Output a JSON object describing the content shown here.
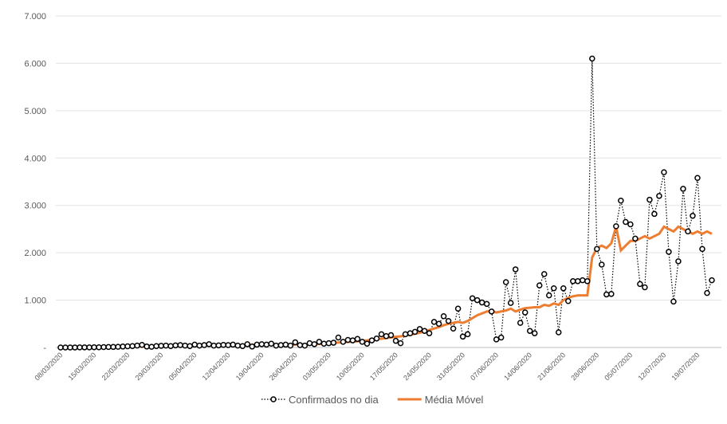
{
  "chart_data": {
    "type": "line",
    "categories": [
      "08/03/2020",
      null,
      null,
      null,
      null,
      null,
      null,
      "15/03/2020",
      null,
      null,
      null,
      null,
      null,
      null,
      "22/03/2020",
      null,
      null,
      null,
      null,
      null,
      null,
      "29/03/2020",
      null,
      null,
      null,
      null,
      null,
      null,
      "05/04/2020",
      null,
      null,
      null,
      null,
      null,
      null,
      "12/04/2020",
      null,
      null,
      null,
      null,
      null,
      null,
      "19/04/2020",
      null,
      null,
      null,
      null,
      null,
      null,
      "26/04/2020",
      null,
      null,
      null,
      null,
      null,
      null,
      "03/05/2020",
      null,
      null,
      null,
      null,
      null,
      null,
      "10/05/2020",
      null,
      null,
      null,
      null,
      null,
      null,
      "17/05/2020",
      null,
      null,
      null,
      null,
      null,
      null,
      "24/05/2020",
      null,
      null,
      null,
      null,
      null,
      null,
      "31/05/2020",
      null,
      null,
      null,
      null,
      null,
      null,
      "07/06/2020",
      null,
      null,
      null,
      null,
      null,
      null,
      "14/06/2020",
      null,
      null,
      null,
      null,
      null,
      null,
      "21/06/2020",
      null,
      null,
      null,
      null,
      null,
      null,
      "28/06/2020",
      null,
      null,
      null,
      null,
      null,
      null,
      "05/07/2020",
      null,
      null,
      null,
      null,
      null,
      null,
      "12/07/2020",
      null,
      null,
      null,
      null,
      null,
      null,
      "19/07/2020",
      null,
      null,
      null
    ],
    "series": [
      {
        "name": "Confirmados no dia",
        "color": "#000000",
        "dash": "dotted",
        "marker": "circle",
        "values": [
          0,
          0,
          0,
          1,
          2,
          3,
          2,
          5,
          4,
          8,
          10,
          12,
          15,
          20,
          25,
          30,
          40,
          55,
          20,
          15,
          30,
          35,
          40,
          30,
          45,
          50,
          40,
          30,
          60,
          40,
          50,
          70,
          40,
          45,
          55,
          50,
          60,
          40,
          30,
          70,
          20,
          60,
          70,
          60,
          80,
          40,
          50,
          60,
          40,
          110,
          50,
          40,
          90,
          70,
          120,
          80,
          90,
          100,
          210,
          120,
          160,
          150,
          180,
          120,
          80,
          150,
          190,
          280,
          240,
          260,
          140,
          90,
          280,
          300,
          330,
          390,
          350,
          300,
          540,
          500,
          660,
          560,
          400,
          820,
          230,
          280,
          1040,
          1000,
          950,
          920,
          760,
          170,
          210,
          1380,
          940,
          1650,
          520,
          740,
          350,
          300,
          1310,
          1550,
          1100,
          1250,
          320,
          1250,
          980,
          1400,
          1400,
          1420,
          1400,
          6100,
          2080,
          1750,
          1120,
          1130,
          2560,
          3100,
          2650,
          2600,
          2300,
          1340,
          1270,
          3120,
          2820,
          3200,
          3700,
          2020,
          970,
          1820,
          3350,
          2450,
          2780,
          3580,
          2080,
          1150,
          1420
        ]
      },
      {
        "name": "Média Móvel",
        "color": "#ed7d31",
        "dash": "solid",
        "marker": "none",
        "values": [
          0,
          0,
          0,
          0,
          1,
          1,
          1,
          2,
          2,
          3,
          4,
          5,
          6,
          8,
          11,
          14,
          17,
          22,
          23,
          24,
          26,
          28,
          30,
          33,
          34,
          36,
          37,
          38,
          40,
          42,
          44,
          45,
          46,
          48,
          50,
          50,
          51,
          52,
          50,
          52,
          53,
          54,
          55,
          57,
          58,
          58,
          60,
          60,
          62,
          64,
          66,
          68,
          70,
          72,
          75,
          78,
          85,
          95,
          105,
          112,
          118,
          125,
          130,
          140,
          150,
          165,
          175,
          185,
          200,
          215,
          225,
          235,
          250,
          270,
          290,
          310,
          340,
          370,
          400,
          430,
          470,
          500,
          520,
          540,
          520,
          560,
          620,
          680,
          720,
          760,
          770,
          740,
          760,
          780,
          820,
          760,
          800,
          830,
          840,
          850,
          850,
          900,
          880,
          930,
          900,
          1000,
          1050,
          1080,
          1100,
          1100,
          1100,
          1900,
          2100,
          2150,
          2100,
          2200,
          2550,
          2050,
          2150,
          2250,
          2250,
          2300,
          2350,
          2300,
          2350,
          2400,
          2550,
          2500,
          2450,
          2550,
          2500,
          2450,
          2400,
          2450,
          2400,
          2450,
          2400
        ]
      }
    ],
    "ylim": [
      0,
      7000
    ],
    "yticks": [
      {
        "value": 0,
        "label": "-"
      },
      {
        "value": 1000,
        "label": "1.000"
      },
      {
        "value": 2000,
        "label": "2.000"
      },
      {
        "value": 3000,
        "label": "3.000"
      },
      {
        "value": 4000,
        "label": "4.000"
      },
      {
        "value": 5000,
        "label": "5.000"
      },
      {
        "value": 6000,
        "label": "6.000"
      },
      {
        "value": 7000,
        "label": "7.000"
      }
    ],
    "grid": true,
    "legend": "bottom"
  }
}
